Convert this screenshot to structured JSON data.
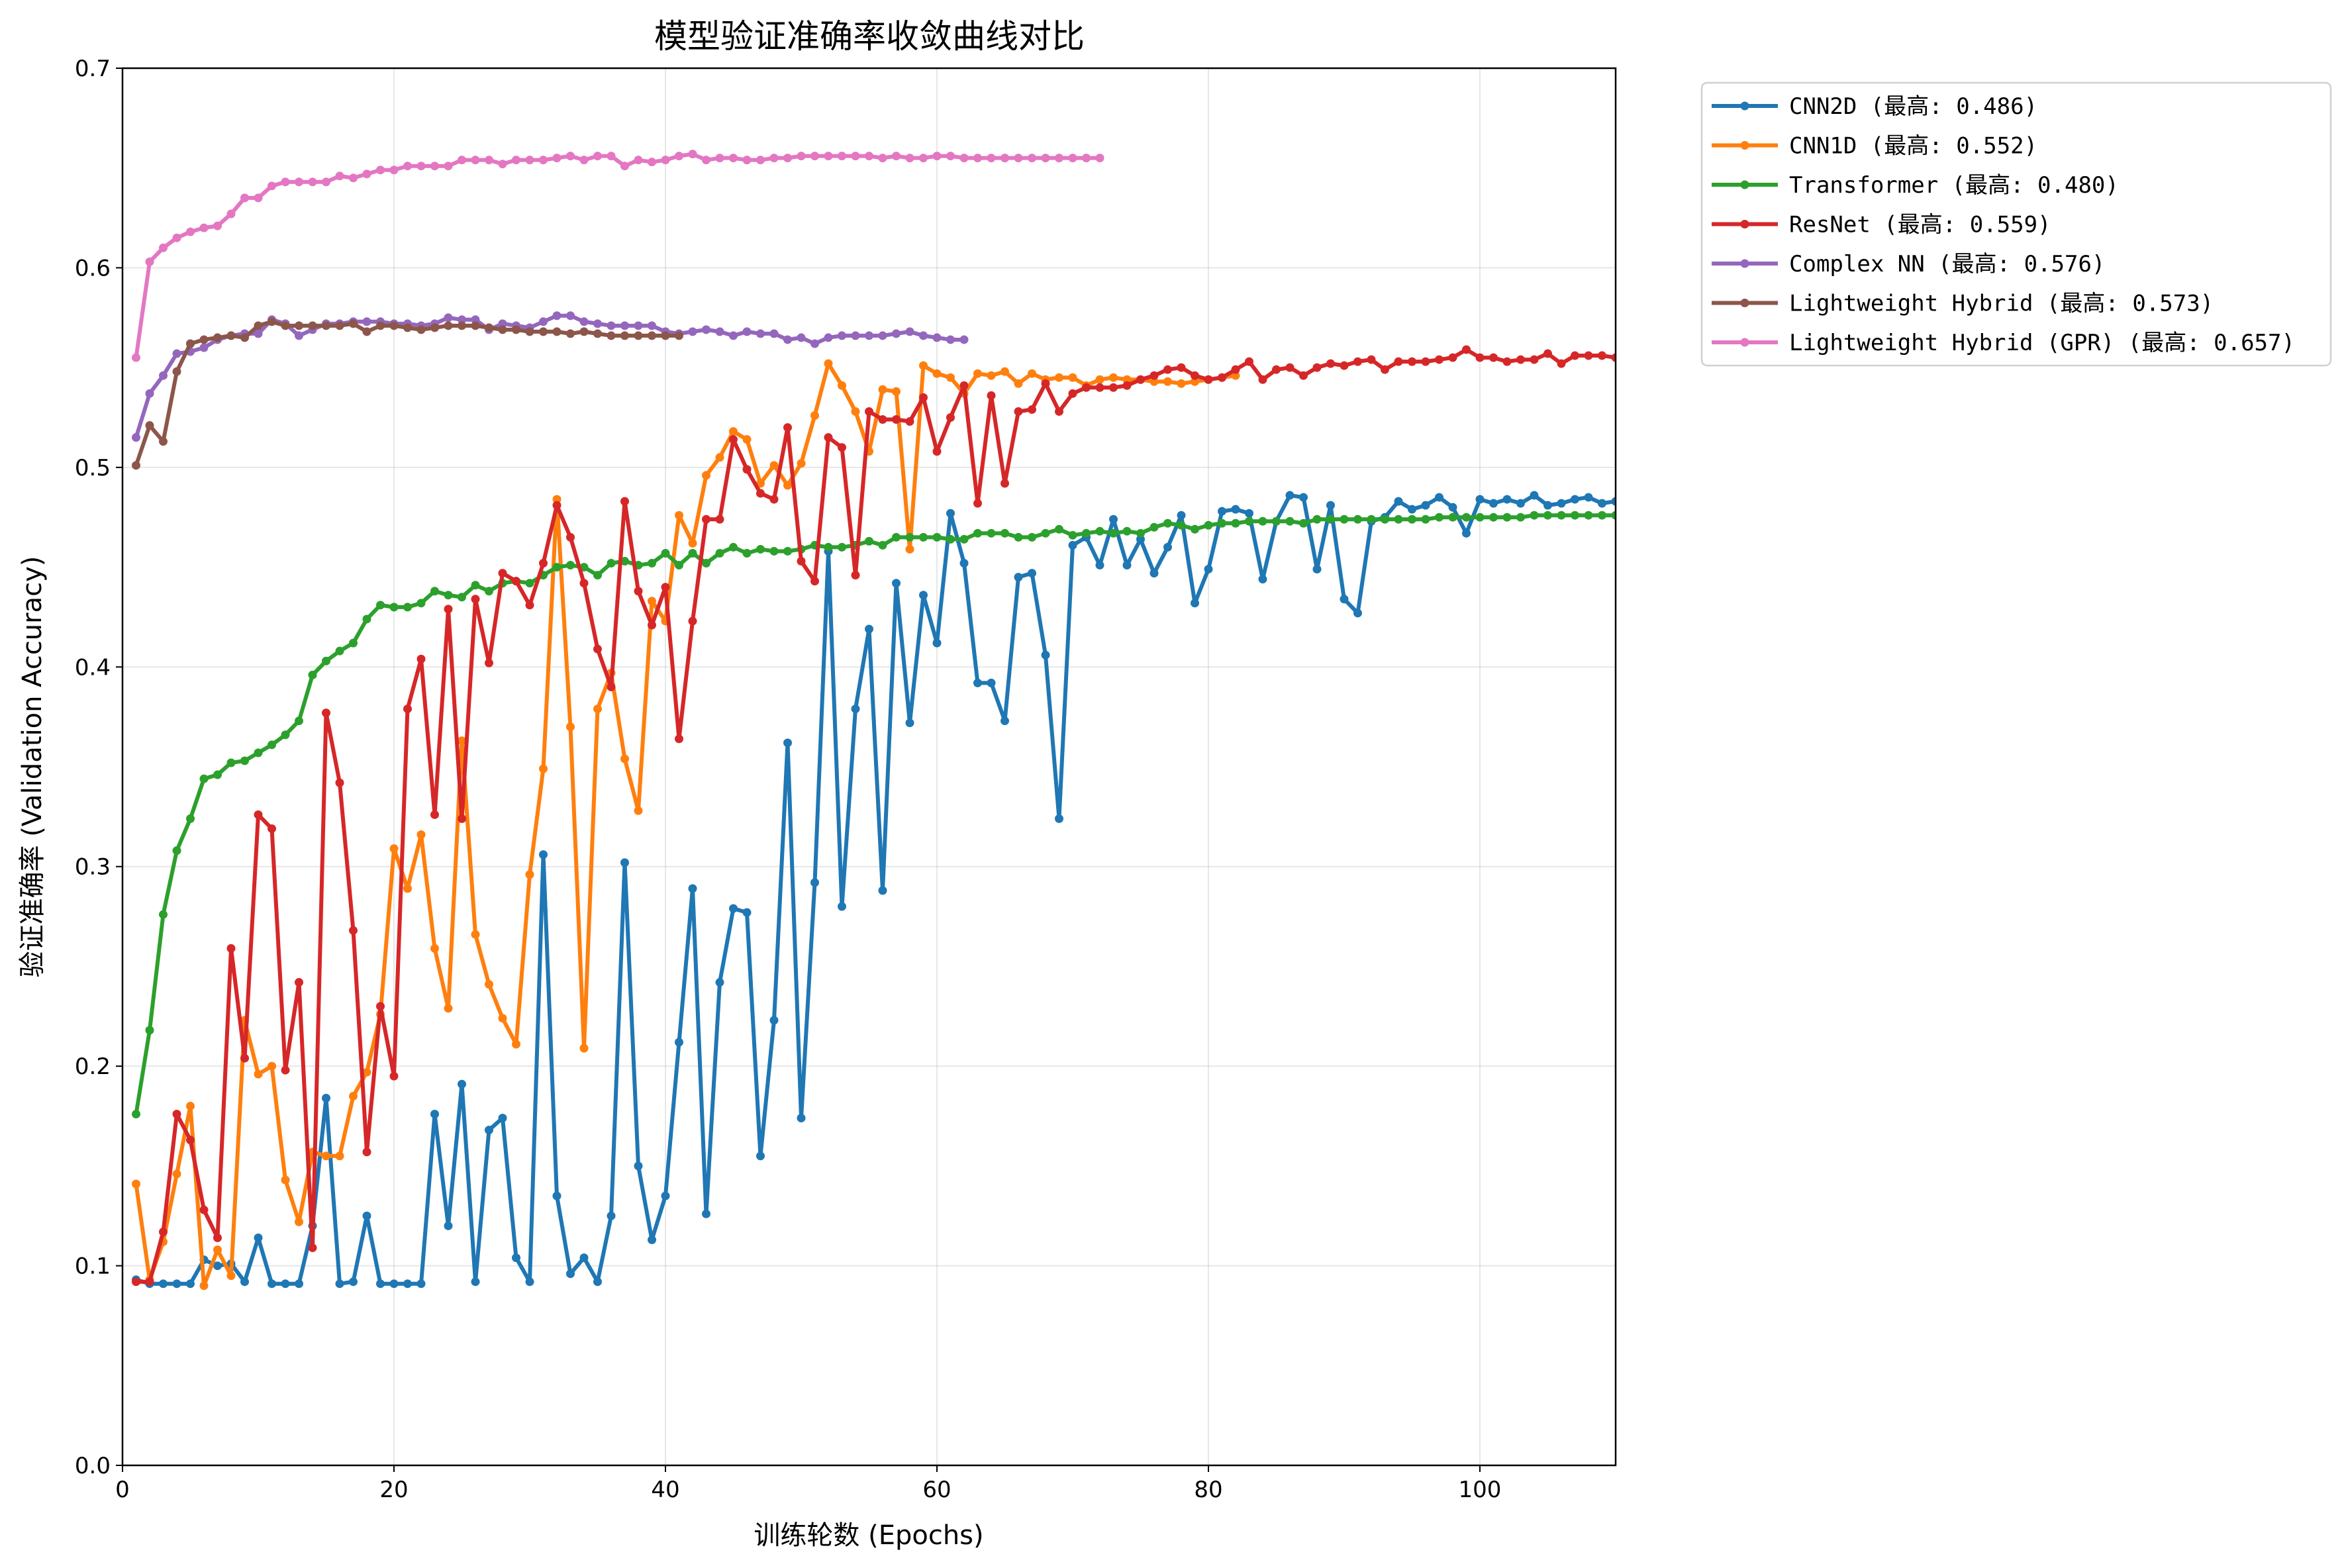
{
  "chart_data": {
    "type": "line",
    "title": "模型验证准确率收敛曲线对比",
    "xlabel": "训练轮数 (Epochs)",
    "ylabel": "验证准确率 (Validation Accuracy)",
    "xlim": [
      0,
      110
    ],
    "ylim": [
      0,
      0.7
    ],
    "xticks": [
      "0",
      "20",
      "40",
      "60",
      "80",
      "100"
    ],
    "yticks": [
      "0.0",
      "0.1",
      "0.2",
      "0.3",
      "0.4",
      "0.5",
      "0.6",
      "0.7"
    ],
    "grid": true,
    "legend_position": "outside-top-right",
    "series": [
      {
        "name": "CNN2D (最高: 0.486)",
        "color": "#1f77b4",
        "values": [
          0.093,
          0.091,
          0.091,
          0.091,
          0.091,
          0.103,
          0.1,
          0.101,
          0.092,
          0.114,
          0.091,
          0.091,
          0.091,
          0.12,
          0.184,
          0.091,
          0.092,
          0.125,
          0.091,
          0.091,
          0.091,
          0.091,
          0.176,
          0.12,
          0.191,
          0.092,
          0.168,
          0.174,
          0.104,
          0.092,
          0.306,
          0.135,
          0.096,
          0.104,
          0.092,
          0.125,
          0.302,
          0.15,
          0.113,
          0.135,
          0.212,
          0.289,
          0.126,
          0.242,
          0.279,
          0.277,
          0.155,
          0.223,
          0.362,
          0.174,
          0.292,
          0.458,
          0.28,
          0.379,
          0.419,
          0.288,
          0.442,
          0.372,
          0.436,
          0.412,
          0.477,
          0.452,
          0.392,
          0.392,
          0.373,
          0.445,
          0.447,
          0.406,
          0.324,
          0.461,
          0.465,
          0.451,
          0.474,
          0.451,
          0.464,
          0.447,
          0.46,
          0.476,
          0.432,
          0.449,
          0.478,
          0.479,
          0.477,
          0.444,
          0.473,
          0.486,
          0.485,
          0.449,
          0.481,
          0.434,
          0.427,
          0.473,
          0.475,
          0.483,
          0.479,
          0.481,
          0.485,
          0.48,
          0.467,
          0.484,
          0.482,
          0.484,
          0.482,
          0.486,
          0.481,
          0.482,
          0.484,
          0.485,
          0.482,
          0.483
        ]
      },
      {
        "name": "CNN1D (最高: 0.552)",
        "color": "#ff7f0e",
        "values": [
          0.141,
          0.093,
          0.112,
          0.146,
          0.18,
          0.09,
          0.108,
          0.095,
          0.223,
          0.196,
          0.2,
          0.143,
          0.122,
          0.157,
          0.155,
          0.155,
          0.185,
          0.197,
          0.226,
          0.309,
          0.289,
          0.316,
          0.259,
          0.229,
          0.363,
          0.266,
          0.241,
          0.224,
          0.211,
          0.296,
          0.349,
          0.484,
          0.37,
          0.209,
          0.379,
          0.397,
          0.354,
          0.328,
          0.433,
          0.423,
          0.476,
          0.462,
          0.496,
          0.505,
          0.518,
          0.514,
          0.492,
          0.501,
          0.491,
          0.502,
          0.526,
          0.552,
          0.541,
          0.528,
          0.508,
          0.539,
          0.538,
          0.459,
          0.551,
          0.547,
          0.545,
          0.537,
          0.547,
          0.546,
          0.548,
          0.542,
          0.547,
          0.544,
          0.545,
          0.545,
          0.541,
          0.544,
          0.545,
          0.544,
          0.544,
          0.543,
          0.543,
          0.542,
          0.543,
          0.544,
          0.545,
          0.546
        ]
      },
      {
        "name": "Transformer (最高: 0.480)",
        "color": "#2ca02c",
        "values": [
          0.176,
          0.218,
          0.276,
          0.308,
          0.324,
          0.344,
          0.346,
          0.352,
          0.353,
          0.357,
          0.361,
          0.366,
          0.373,
          0.396,
          0.403,
          0.408,
          0.412,
          0.424,
          0.431,
          0.43,
          0.43,
          0.432,
          0.438,
          0.436,
          0.435,
          0.441,
          0.438,
          0.442,
          0.443,
          0.442,
          0.446,
          0.45,
          0.451,
          0.45,
          0.446,
          0.452,
          0.453,
          0.451,
          0.452,
          0.457,
          0.451,
          0.457,
          0.452,
          0.457,
          0.46,
          0.457,
          0.459,
          0.458,
          0.458,
          0.459,
          0.461,
          0.46,
          0.46,
          0.461,
          0.463,
          0.461,
          0.465,
          0.465,
          0.465,
          0.465,
          0.464,
          0.464,
          0.467,
          0.467,
          0.467,
          0.465,
          0.465,
          0.467,
          0.469,
          0.466,
          0.467,
          0.468,
          0.467,
          0.468,
          0.467,
          0.47,
          0.472,
          0.471,
          0.469,
          0.471,
          0.472,
          0.472,
          0.473,
          0.473,
          0.473,
          0.473,
          0.472,
          0.474,
          0.474,
          0.474,
          0.474,
          0.474,
          0.474,
          0.474,
          0.474,
          0.474,
          0.475,
          0.475,
          0.475,
          0.475,
          0.475,
          0.475,
          0.475,
          0.476,
          0.476,
          0.476,
          0.476,
          0.476,
          0.476,
          0.476
        ]
      },
      {
        "name": "ResNet (最高: 0.559)",
        "color": "#d62728",
        "values": [
          0.092,
          0.092,
          0.117,
          0.176,
          0.163,
          0.128,
          0.114,
          0.259,
          0.204,
          0.326,
          0.319,
          0.198,
          0.242,
          0.109,
          0.377,
          0.342,
          0.268,
          0.157,
          0.23,
          0.195,
          0.379,
          0.404,
          0.326,
          0.429,
          0.324,
          0.434,
          0.402,
          0.447,
          0.443,
          0.431,
          0.452,
          0.481,
          0.465,
          0.442,
          0.409,
          0.39,
          0.483,
          0.438,
          0.421,
          0.44,
          0.364,
          0.423,
          0.474,
          0.474,
          0.514,
          0.499,
          0.487,
          0.484,
          0.52,
          0.453,
          0.443,
          0.515,
          0.51,
          0.446,
          0.528,
          0.524,
          0.524,
          0.523,
          0.535,
          0.508,
          0.525,
          0.541,
          0.482,
          0.536,
          0.492,
          0.528,
          0.529,
          0.542,
          0.528,
          0.537,
          0.54,
          0.54,
          0.54,
          0.541,
          0.544,
          0.546,
          0.549,
          0.55,
          0.546,
          0.544,
          0.545,
          0.549,
          0.553,
          0.544,
          0.549,
          0.55,
          0.546,
          0.55,
          0.552,
          0.551,
          0.553,
          0.554,
          0.549,
          0.553,
          0.553,
          0.553,
          0.554,
          0.555,
          0.559,
          0.555,
          0.555,
          0.553,
          0.554,
          0.554,
          0.557,
          0.552,
          0.556,
          0.556,
          0.556,
          0.555
        ]
      },
      {
        "name": "Complex NN (最高: 0.576)",
        "color": "#9467bd",
        "values": [
          0.515,
          0.537,
          0.546,
          0.557,
          0.558,
          0.56,
          0.564,
          0.566,
          0.567,
          0.567,
          0.574,
          0.572,
          0.566,
          0.569,
          0.572,
          0.572,
          0.573,
          0.573,
          0.573,
          0.572,
          0.572,
          0.571,
          0.572,
          0.575,
          0.574,
          0.574,
          0.569,
          0.572,
          0.571,
          0.57,
          0.573,
          0.576,
          0.576,
          0.573,
          0.572,
          0.571,
          0.571,
          0.571,
          0.571,
          0.568,
          0.567,
          0.568,
          0.569,
          0.568,
          0.566,
          0.568,
          0.567,
          0.567,
          0.564,
          0.565,
          0.562,
          0.565,
          0.566,
          0.566,
          0.566,
          0.566,
          0.567,
          0.568,
          0.566,
          0.565,
          0.564,
          0.564
        ]
      },
      {
        "name": "Lightweight Hybrid (最高: 0.573)",
        "color": "#8c564b",
        "values": [
          0.501,
          0.521,
          0.513,
          0.548,
          0.562,
          0.564,
          0.565,
          0.566,
          0.565,
          0.571,
          0.573,
          0.571,
          0.571,
          0.571,
          0.571,
          0.571,
          0.572,
          0.568,
          0.571,
          0.571,
          0.57,
          0.569,
          0.57,
          0.571,
          0.571,
          0.571,
          0.57,
          0.569,
          0.569,
          0.568,
          0.568,
          0.568,
          0.567,
          0.568,
          0.567,
          0.566,
          0.566,
          0.566,
          0.566,
          0.566,
          0.566
        ]
      },
      {
        "name": "Lightweight Hybrid (GPR) (最高: 0.657)",
        "color": "#e377c2",
        "values": [
          0.555,
          0.603,
          0.61,
          0.615,
          0.618,
          0.62,
          0.621,
          0.627,
          0.635,
          0.635,
          0.641,
          0.643,
          0.643,
          0.643,
          0.643,
          0.646,
          0.645,
          0.647,
          0.649,
          0.649,
          0.651,
          0.651,
          0.651,
          0.651,
          0.654,
          0.654,
          0.654,
          0.652,
          0.654,
          0.654,
          0.654,
          0.655,
          0.656,
          0.654,
          0.656,
          0.656,
          0.651,
          0.654,
          0.653,
          0.654,
          0.656,
          0.657,
          0.654,
          0.655,
          0.655,
          0.654,
          0.654,
          0.655,
          0.655,
          0.656,
          0.656,
          0.656,
          0.656,
          0.656,
          0.656,
          0.655,
          0.656,
          0.655,
          0.655,
          0.656,
          0.656,
          0.655,
          0.655,
          0.655,
          0.655,
          0.655,
          0.655,
          0.655,
          0.655,
          0.655,
          0.655,
          0.655
        ]
      }
    ]
  }
}
